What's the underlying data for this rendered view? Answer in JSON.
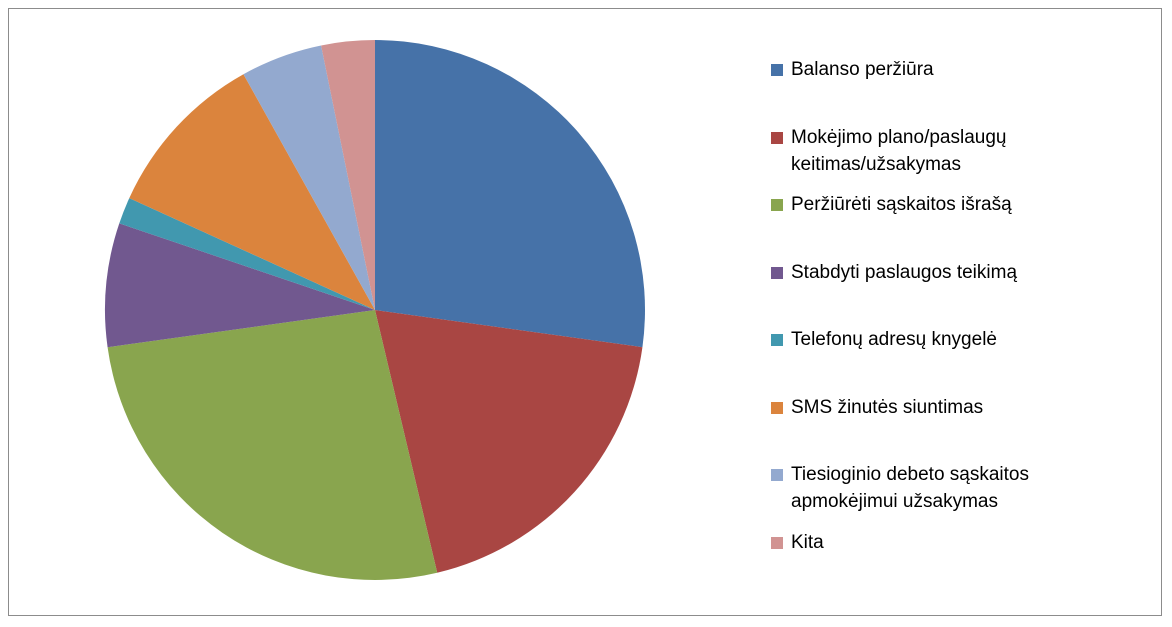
{
  "chart_data": {
    "type": "pie",
    "categories": [
      "Balanso peržiūra",
      "Mokėjimo plano/paslaugų keitimas/užsakymas",
      "Peržiūrėti sąskaitos išrašą",
      "Stabdyti paslaugos teikimą",
      "Telefonų adresų knygelė",
      "SMS žinutės siuntimas",
      "Tiesioginio debeto sąskaitos apmokėjimui užsakymas",
      "Kita"
    ],
    "values": [
      27.2,
      19.1,
      26.5,
      7.4,
      1.6,
      10.1,
      4.9,
      3.2
    ],
    "colors": [
      "#4672a8",
      "#a94643",
      "#89a54e",
      "#71588f",
      "#4198af",
      "#db843d",
      "#93a9cf",
      "#d19392"
    ],
    "legend": "right"
  }
}
